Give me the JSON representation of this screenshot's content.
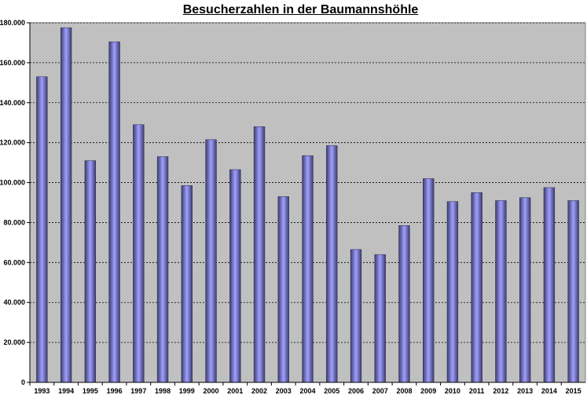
{
  "chart_data": {
    "type": "bar",
    "title": "Besucherzahlen in der Baumannshöhle",
    "xlabel": "",
    "ylabel": "",
    "categories": [
      "1993",
      "1994",
      "1995",
      "1996",
      "1997",
      "1998",
      "1999",
      "2000",
      "2001",
      "2002",
      "2003",
      "2004",
      "2005",
      "2006",
      "2007",
      "2008",
      "2009",
      "2010",
      "2011",
      "2012",
      "2013",
      "2014",
      "2015"
    ],
    "values": [
      153000,
      177500,
      111000,
      170500,
      129000,
      113000,
      98500,
      121500,
      106500,
      128000,
      93000,
      113500,
      118500,
      66500,
      64000,
      78500,
      102000,
      90500,
      95000,
      91000,
      92500,
      97500,
      91000
    ],
    "ylim": [
      0,
      180000
    ],
    "yticks": [
      0,
      20000,
      40000,
      60000,
      80000,
      100000,
      120000,
      140000,
      160000,
      180000
    ],
    "ytick_labels": [
      "0",
      "20.000",
      "40.000",
      "60.000",
      "80.000",
      "100.000",
      "120.000",
      "140.000",
      "160.000",
      "180.000"
    ],
    "grid": true,
    "legend": "none",
    "colors": {
      "plot_background": "#c0c0c0",
      "bar_edge": "#3c3c6e",
      "bar_center": "#a0a0ff",
      "grid": "#000000"
    }
  }
}
